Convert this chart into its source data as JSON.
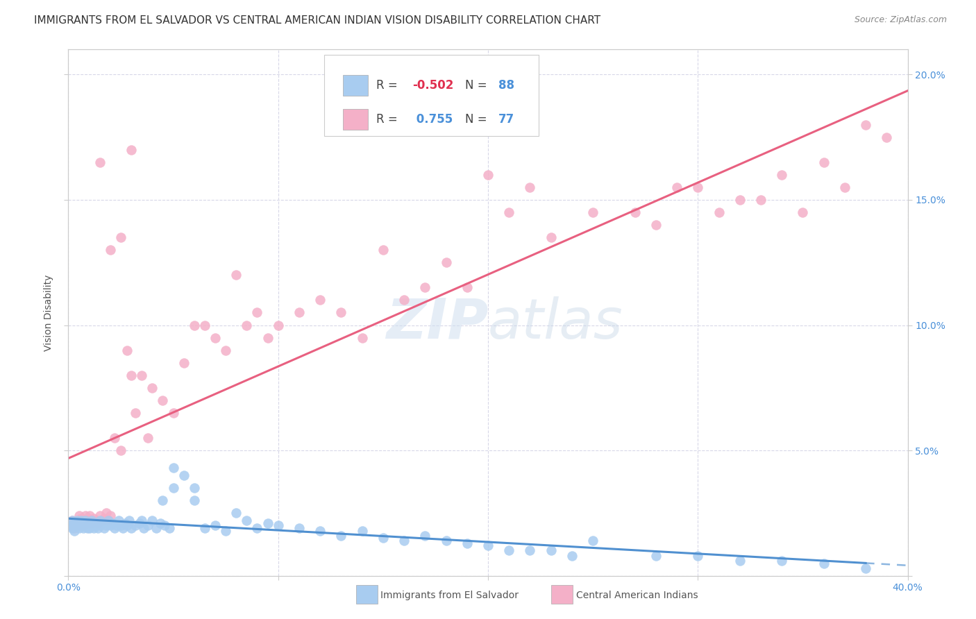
{
  "title": "IMMIGRANTS FROM EL SALVADOR VS CENTRAL AMERICAN INDIAN VISION DISABILITY CORRELATION CHART",
  "source": "Source: ZipAtlas.com",
  "ylabel": "Vision Disability",
  "xlim": [
    0.0,
    0.4
  ],
  "ylim": [
    0.0,
    0.21
  ],
  "x_ticks": [
    0.0,
    0.1,
    0.2,
    0.3,
    0.4
  ],
  "x_tick_labels": [
    "0.0%",
    "",
    "",
    "",
    "40.0%"
  ],
  "y_ticks_right": [
    0.05,
    0.1,
    0.15,
    0.2
  ],
  "y_tick_labels_right": [
    "5.0%",
    "10.0%",
    "15.0%",
    "20.0%"
  ],
  "blue_R": "-0.502",
  "blue_N": "88",
  "pink_R": "0.755",
  "pink_N": "77",
  "blue_color": "#a8ccf0",
  "pink_color": "#f4b0c8",
  "blue_line_color": "#5090d0",
  "pink_line_color": "#e86080",
  "grid_color": "#d8d8e8",
  "watermark": "ZIPatlas",
  "blue_scatter_x": [
    0.001,
    0.002,
    0.002,
    0.003,
    0.003,
    0.004,
    0.004,
    0.005,
    0.005,
    0.006,
    0.006,
    0.007,
    0.007,
    0.008,
    0.008,
    0.009,
    0.009,
    0.01,
    0.01,
    0.011,
    0.011,
    0.012,
    0.012,
    0.013,
    0.013,
    0.014,
    0.015,
    0.015,
    0.016,
    0.017,
    0.018,
    0.019,
    0.02,
    0.021,
    0.022,
    0.023,
    0.024,
    0.025,
    0.026,
    0.027,
    0.028,
    0.029,
    0.03,
    0.032,
    0.034,
    0.036,
    0.038,
    0.04,
    0.042,
    0.044,
    0.046,
    0.048,
    0.05,
    0.055,
    0.06,
    0.065,
    0.07,
    0.075,
    0.08,
    0.085,
    0.09,
    0.095,
    0.1,
    0.11,
    0.12,
    0.13,
    0.14,
    0.15,
    0.16,
    0.17,
    0.18,
    0.19,
    0.2,
    0.21,
    0.22,
    0.23,
    0.24,
    0.25,
    0.28,
    0.3,
    0.32,
    0.34,
    0.36,
    0.38,
    0.05,
    0.06,
    0.045,
    0.035
  ],
  "blue_scatter_y": [
    0.02,
    0.019,
    0.022,
    0.021,
    0.018,
    0.022,
    0.02,
    0.019,
    0.021,
    0.02,
    0.022,
    0.019,
    0.021,
    0.02,
    0.022,
    0.019,
    0.02,
    0.021,
    0.019,
    0.022,
    0.02,
    0.019,
    0.021,
    0.02,
    0.021,
    0.019,
    0.022,
    0.02,
    0.021,
    0.019,
    0.02,
    0.022,
    0.02,
    0.021,
    0.019,
    0.02,
    0.022,
    0.02,
    0.019,
    0.021,
    0.02,
    0.022,
    0.019,
    0.02,
    0.021,
    0.019,
    0.02,
    0.022,
    0.019,
    0.021,
    0.02,
    0.019,
    0.043,
    0.04,
    0.035,
    0.019,
    0.02,
    0.018,
    0.025,
    0.022,
    0.019,
    0.021,
    0.02,
    0.019,
    0.018,
    0.016,
    0.018,
    0.015,
    0.014,
    0.016,
    0.014,
    0.013,
    0.012,
    0.01,
    0.01,
    0.01,
    0.008,
    0.014,
    0.008,
    0.008,
    0.006,
    0.006,
    0.005,
    0.003,
    0.035,
    0.03,
    0.03,
    0.022
  ],
  "pink_scatter_x": [
    0.001,
    0.002,
    0.003,
    0.004,
    0.005,
    0.005,
    0.006,
    0.006,
    0.007,
    0.007,
    0.008,
    0.008,
    0.009,
    0.009,
    0.01,
    0.01,
    0.011,
    0.012,
    0.013,
    0.014,
    0.015,
    0.016,
    0.017,
    0.018,
    0.019,
    0.02,
    0.022,
    0.025,
    0.028,
    0.03,
    0.032,
    0.035,
    0.038,
    0.04,
    0.045,
    0.05,
    0.055,
    0.06,
    0.065,
    0.07,
    0.075,
    0.08,
    0.085,
    0.09,
    0.095,
    0.1,
    0.11,
    0.12,
    0.13,
    0.14,
    0.15,
    0.16,
    0.17,
    0.18,
    0.19,
    0.2,
    0.21,
    0.22,
    0.23,
    0.25,
    0.27,
    0.29,
    0.31,
    0.33,
    0.35,
    0.37,
    0.39,
    0.28,
    0.3,
    0.32,
    0.34,
    0.36,
    0.38,
    0.015,
    0.02,
    0.025,
    0.03
  ],
  "pink_scatter_y": [
    0.02,
    0.022,
    0.019,
    0.021,
    0.024,
    0.02,
    0.023,
    0.021,
    0.022,
    0.02,
    0.024,
    0.022,
    0.021,
    0.023,
    0.022,
    0.024,
    0.021,
    0.023,
    0.022,
    0.021,
    0.024,
    0.022,
    0.023,
    0.025,
    0.022,
    0.024,
    0.055,
    0.05,
    0.09,
    0.08,
    0.065,
    0.08,
    0.055,
    0.075,
    0.07,
    0.065,
    0.085,
    0.1,
    0.1,
    0.095,
    0.09,
    0.12,
    0.1,
    0.105,
    0.095,
    0.1,
    0.105,
    0.11,
    0.105,
    0.095,
    0.13,
    0.11,
    0.115,
    0.125,
    0.115,
    0.16,
    0.145,
    0.155,
    0.135,
    0.145,
    0.145,
    0.155,
    0.145,
    0.15,
    0.145,
    0.155,
    0.175,
    0.14,
    0.155,
    0.15,
    0.16,
    0.165,
    0.18,
    0.165,
    0.13,
    0.135,
    0.17
  ],
  "title_fontsize": 11,
  "axis_label_fontsize": 10,
  "tick_fontsize": 10,
  "legend_fontsize": 12
}
